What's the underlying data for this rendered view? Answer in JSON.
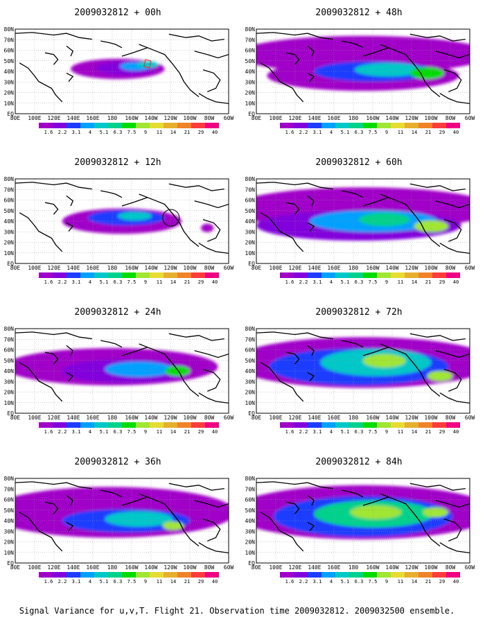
{
  "caption": "Signal Variance for u,v,T. Flight 21. Observation time 2009032812. 2009032500 ensemble.",
  "panels": [
    {
      "title": "2009032812 + 00h",
      "forecast_hour": 0
    },
    {
      "title": "2009032812 + 48h",
      "forecast_hour": 48
    },
    {
      "title": "2009032812 + 12h",
      "forecast_hour": 12
    },
    {
      "title": "2009032812 + 60h",
      "forecast_hour": 60
    },
    {
      "title": "2009032812 + 24h",
      "forecast_hour": 24
    },
    {
      "title": "2009032812 + 72h",
      "forecast_hour": 72
    },
    {
      "title": "2009032812 + 36h",
      "forecast_hour": 36
    },
    {
      "title": "2009032812 + 84h",
      "forecast_hour": 84
    }
  ],
  "x_axis_ticks": [
    "80E",
    "100E",
    "120E",
    "140E",
    "160E",
    "180",
    "160W",
    "140W",
    "120W",
    "100W",
    "80W",
    "60W"
  ],
  "y_axis_ticks": [
    "80N",
    "70N",
    "60N",
    "50N",
    "40N",
    "30N",
    "20N",
    "10N",
    "EQ"
  ],
  "colorbar": {
    "levels": [
      "1.6",
      "2.2",
      "3.1",
      "4",
      "5.1",
      "6.3",
      "7.5",
      "9",
      "11",
      "14",
      "21",
      "29",
      "40"
    ],
    "colors": [
      "#a000c8",
      "#8200dc",
      "#1e3cff",
      "#00a0ff",
      "#00c8c8",
      "#00d28c",
      "#00dc00",
      "#a0e632",
      "#e6dc32",
      "#e6af2d",
      "#f08228",
      "#fa3c3c",
      "#f00082"
    ]
  },
  "chart_data": {
    "type": "map-contour",
    "variable": "Signal Variance",
    "lon_range": [
      "80E",
      "60W"
    ],
    "lat_range": [
      "EQ",
      "80N"
    ],
    "grid": true
  }
}
